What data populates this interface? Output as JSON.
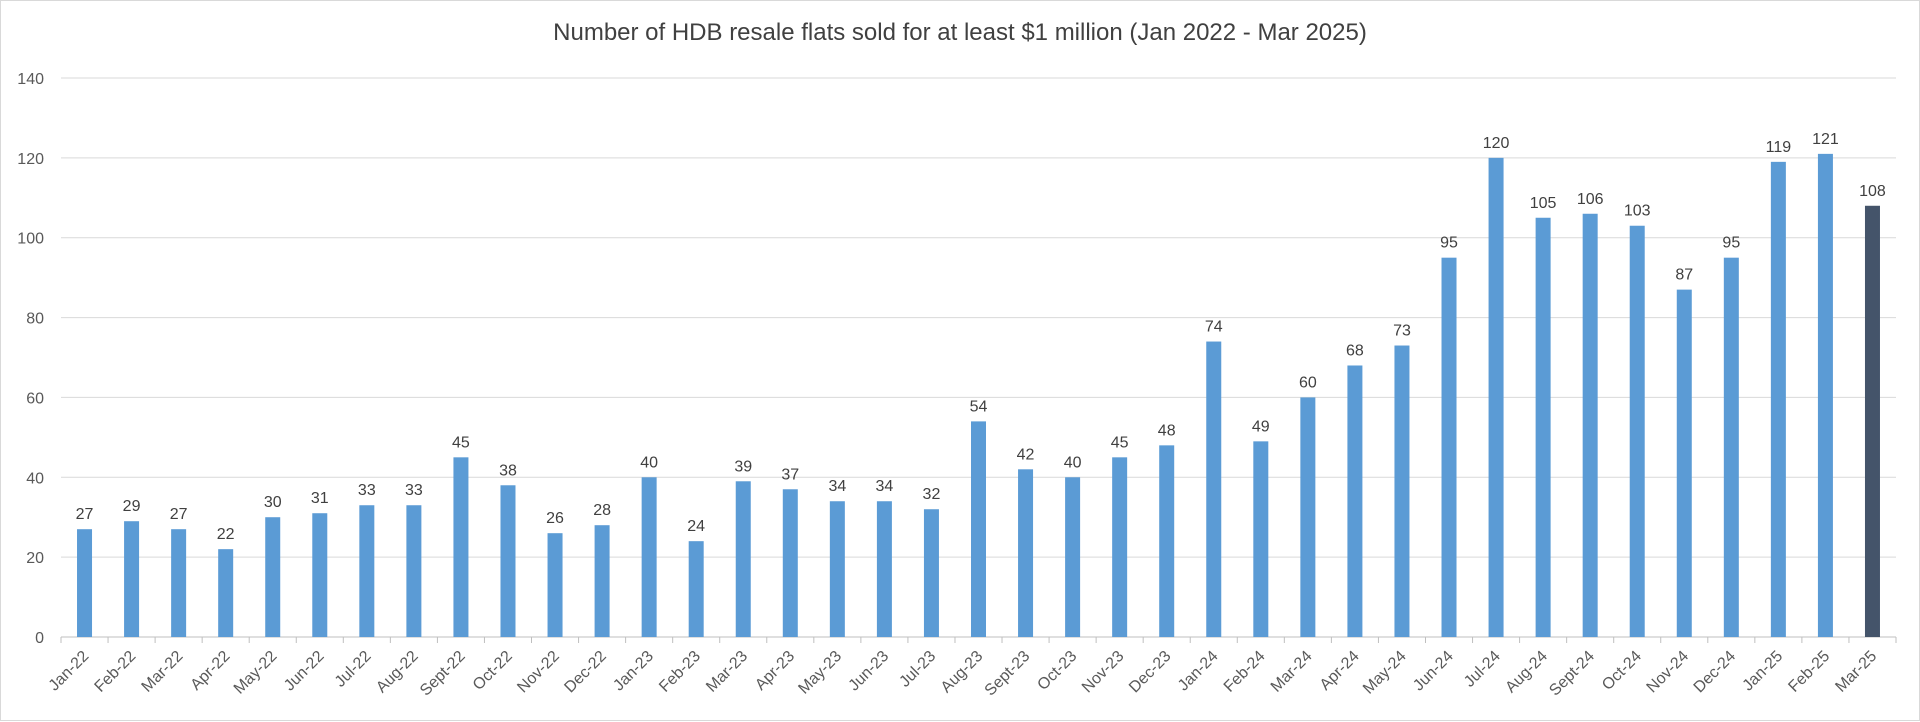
{
  "chart_data": {
    "type": "bar",
    "title": "Number of HDB resale flats sold for at least $1 million (Jan 2022 -  Mar 2025)",
    "xlabel": "",
    "ylabel": "",
    "ylim": [
      0,
      140
    ],
    "yticks": [
      0,
      20,
      40,
      60,
      80,
      100,
      120,
      140
    ],
    "grid": true,
    "legend": "none",
    "data_labels": true,
    "categories": [
      "Jan-22",
      "Feb-22",
      "Mar-22",
      "Apr-22",
      "May-22",
      "Jun-22",
      "Jul-22",
      "Aug-22",
      "Sept-22",
      "Oct-22",
      "Nov-22",
      "Dec-22",
      "Jan-23",
      "Feb-23",
      "Mar-23",
      "Apr-23",
      "May-23",
      "Jun-23",
      "Jul-23",
      "Aug-23",
      "Sept-23",
      "Oct-23",
      "Nov-23",
      "Dec-23",
      "Jan-24",
      "Feb-24",
      "Mar-24",
      "Apr-24",
      "May-24",
      "Jun-24",
      "Jul-24",
      "Aug-24",
      "Sept-24",
      "Oct-24",
      "Nov-24",
      "Dec-24",
      "Jan-25",
      "Feb-25",
      "Mar-25"
    ],
    "values": [
      27,
      29,
      27,
      22,
      30,
      31,
      33,
      33,
      45,
      38,
      26,
      28,
      40,
      24,
      39,
      37,
      34,
      34,
      32,
      54,
      42,
      40,
      45,
      48,
      74,
      49,
      60,
      68,
      73,
      95,
      120,
      105,
      106,
      103,
      87,
      95,
      119,
      121,
      108
    ],
    "colors": {
      "bar": "#5b9bd5",
      "highlight_bar": "#44546a",
      "grid": "#d9d9d9",
      "axis": "#bfbfbf"
    },
    "highlight_index": 38
  }
}
